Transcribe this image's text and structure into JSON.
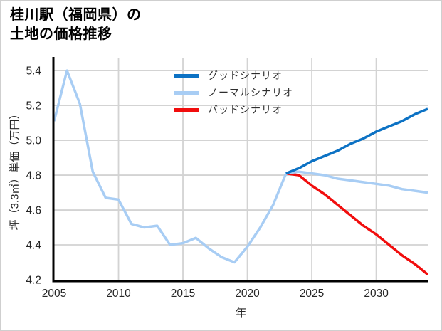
{
  "page": {
    "background": "#ffffff",
    "border_color": "#cfcfcf"
  },
  "title": {
    "line1": "桂川駅（福岡県）の",
    "line2": "土地の価格推移"
  },
  "chart_data": {
    "type": "line",
    "title": "桂川駅（福岡県）の土地の価格推移",
    "xlabel": "年",
    "ylabel": "坪（3.3㎡）単価（万円）",
    "xlim": [
      2005,
      2034
    ],
    "ylim": [
      4.2,
      5.47
    ],
    "grid": true,
    "legend_position": "upper-center-inside",
    "grid_color": "#d3d3d3",
    "axis_color": "#000000",
    "tick_text_color": "#262626",
    "x_ticks": [
      {
        "value": 2005,
        "label": "2005"
      },
      {
        "value": 2010,
        "label": "2010"
      },
      {
        "value": 2015,
        "label": "2015"
      },
      {
        "value": 2020,
        "label": "2020"
      },
      {
        "value": 2025,
        "label": "2025"
      },
      {
        "value": 2030,
        "label": "2030"
      }
    ],
    "y_ticks": [
      {
        "value": 4.2,
        "label": "4.2"
      },
      {
        "value": 4.4,
        "label": "4.4"
      },
      {
        "value": 4.6,
        "label": "4.6"
      },
      {
        "value": 4.8,
        "label": "4.8"
      },
      {
        "value": 5.0,
        "label": "5.0"
      },
      {
        "value": 5.2,
        "label": "5.2"
      },
      {
        "value": 5.4,
        "label": "5.4"
      }
    ],
    "series": [
      {
        "name": "グッドシナリオ",
        "color": "#0c72c4",
        "x": [
          2023,
          2024,
          2025,
          2026,
          2027,
          2028,
          2029,
          2030,
          2031,
          2032,
          2033,
          2034
        ],
        "values": [
          4.81,
          4.84,
          4.88,
          4.91,
          4.94,
          4.98,
          5.01,
          5.05,
          5.08,
          5.11,
          5.15,
          5.18
        ]
      },
      {
        "name": "ノーマルシナリオ",
        "color": "#a8cdf4",
        "x": [
          2005,
          2006,
          2007,
          2008,
          2009,
          2010,
          2011,
          2012,
          2013,
          2014,
          2015,
          2016,
          2017,
          2018,
          2019,
          2020,
          2021,
          2022,
          2023,
          2024,
          2025,
          2026,
          2027,
          2028,
          2029,
          2030,
          2031,
          2032,
          2033,
          2034
        ],
        "values": [
          5.11,
          5.4,
          5.21,
          4.82,
          4.67,
          4.66,
          4.52,
          4.5,
          4.51,
          4.4,
          4.41,
          4.44,
          4.38,
          4.33,
          4.3,
          4.39,
          4.5,
          4.63,
          4.81,
          4.82,
          4.81,
          4.8,
          4.78,
          4.77,
          4.76,
          4.75,
          4.74,
          4.72,
          4.71,
          4.7
        ]
      },
      {
        "name": "バッドシナリオ",
        "color": "#f10d0d",
        "x": [
          2023,
          2024,
          2025,
          2026,
          2027,
          2028,
          2029,
          2030,
          2031,
          2032,
          2033,
          2034
        ],
        "values": [
          4.81,
          4.8,
          4.74,
          4.69,
          4.63,
          4.57,
          4.51,
          4.46,
          4.4,
          4.34,
          4.29,
          4.23
        ]
      }
    ]
  }
}
